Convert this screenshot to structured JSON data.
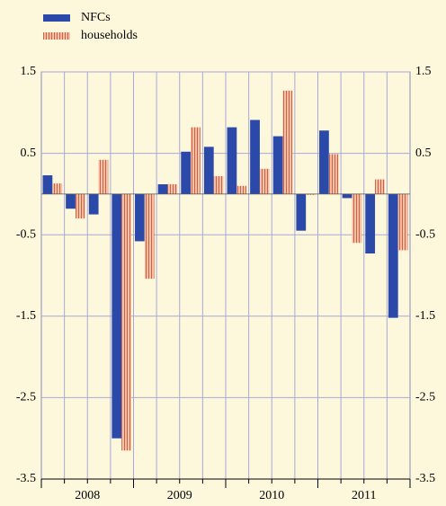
{
  "chart_data": {
    "type": "bar",
    "categories": [
      "2008",
      null,
      null,
      null,
      "2009",
      null,
      null,
      null,
      "2010",
      null,
      null,
      null,
      "2011",
      null,
      null,
      null
    ],
    "series": [
      {
        "name": "NFCs",
        "color": "#2b49a8",
        "values": [
          0.23,
          -0.18,
          -0.25,
          -3.0,
          -0.58,
          0.12,
          0.52,
          0.58,
          0.82,
          0.91,
          0.71,
          -0.45,
          0.78,
          -0.05,
          -0.73,
          -1.52
        ]
      },
      {
        "name": "households",
        "color": "#f0b49c",
        "values": [
          0.13,
          -0.3,
          0.42,
          -3.15,
          -1.04,
          0.12,
          0.82,
          0.22,
          0.1,
          0.31,
          1.27,
          -0.01,
          0.49,
          -0.6,
          0.18,
          -0.69
        ]
      }
    ],
    "ylim": [
      -3.5,
      1.5
    ],
    "yticks": [
      1.5,
      0.5,
      -0.5,
      -1.5,
      -2.5,
      -3.5
    ],
    "grid": true,
    "legend": "top-left"
  }
}
